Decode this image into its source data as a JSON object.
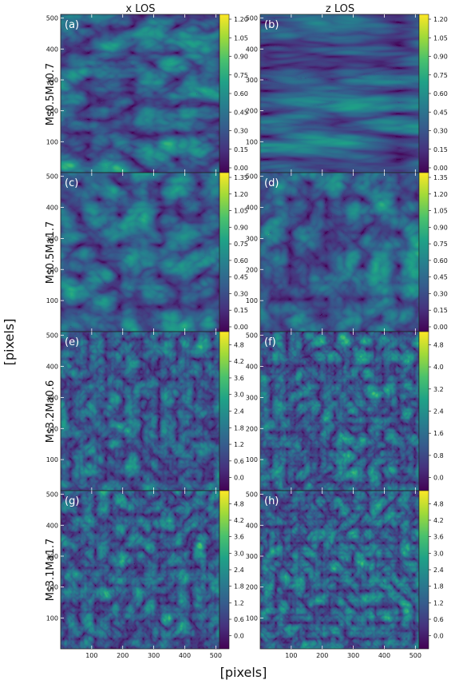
{
  "figure": {
    "column_titles": [
      "x LOS",
      "z LOS"
    ],
    "row_labels": [
      "Ms0.5Ma0.7",
      "Ms0.5Ma1.7",
      "Ms3.2Ma0.6",
      "Ms3.1Ma1.7"
    ],
    "xlabel": "[pixels]",
    "ylabel": "[pixels]",
    "colormap": "viridis",
    "colormap_stops": [
      "#440154",
      "#46327e",
      "#365c8d",
      "#277f8e",
      "#1fa187",
      "#4ac16d",
      "#a0da39",
      "#fde725"
    ]
  },
  "chart_data": [
    {
      "type": "heatmap",
      "panel_label": "(a)",
      "row": 0,
      "col": 0,
      "xlim": [
        0,
        512
      ],
      "ylim": [
        0,
        512
      ],
      "x_ticks": [
        100,
        200,
        300,
        400,
        500
      ],
      "y_ticks": [
        100,
        200,
        300,
        400,
        500
      ],
      "colorbar_ticks": [
        "0.00",
        "0.15",
        "0.30",
        "0.45",
        "0.60",
        "0.75",
        "0.90",
        "1.05",
        "1.20"
      ],
      "colorbar_range": [
        0,
        1.2
      ]
    },
    {
      "type": "heatmap",
      "panel_label": "(b)",
      "row": 0,
      "col": 1,
      "xlim": [
        0,
        512
      ],
      "ylim": [
        0,
        512
      ],
      "x_ticks": [
        100,
        200,
        300,
        400,
        500
      ],
      "y_ticks": [
        100,
        200,
        300,
        400,
        500
      ],
      "colorbar_ticks": [
        "0.00",
        "0.15",
        "0.30",
        "0.45",
        "0.60",
        "0.75",
        "0.90",
        "1.05",
        "1.20"
      ],
      "colorbar_range": [
        0,
        1.2
      ]
    },
    {
      "type": "heatmap",
      "panel_label": "(c)",
      "row": 1,
      "col": 0,
      "xlim": [
        0,
        512
      ],
      "ylim": [
        0,
        512
      ],
      "x_ticks": [
        100,
        200,
        300,
        400,
        500
      ],
      "y_ticks": [
        100,
        200,
        300,
        400,
        500
      ],
      "colorbar_ticks": [
        "0.00",
        "0.15",
        "0.30",
        "0.45",
        "0.60",
        "0.75",
        "0.90",
        "1.05",
        "1.20",
        "1.35"
      ],
      "colorbar_range": [
        0,
        1.35
      ]
    },
    {
      "type": "heatmap",
      "panel_label": "(d)",
      "row": 1,
      "col": 1,
      "xlim": [
        0,
        512
      ],
      "ylim": [
        0,
        512
      ],
      "x_ticks": [
        100,
        200,
        300,
        400,
        500
      ],
      "y_ticks": [
        100,
        200,
        300,
        400,
        500
      ],
      "colorbar_ticks": [
        "0.00",
        "0.15",
        "0.30",
        "0.45",
        "0.60",
        "0.75",
        "0.90",
        "1.05",
        "1.20",
        "1.35"
      ],
      "colorbar_range": [
        0,
        1.35
      ]
    },
    {
      "type": "heatmap",
      "panel_label": "(e)",
      "row": 2,
      "col": 0,
      "xlim": [
        0,
        512
      ],
      "ylim": [
        0,
        512
      ],
      "x_ticks": [
        100,
        200,
        300,
        400,
        500
      ],
      "y_ticks": [
        100,
        200,
        300,
        400,
        500
      ],
      "colorbar_ticks": [
        "0.0",
        "0.6",
        "1.2",
        "1.8",
        "2.4",
        "3.0",
        "3.6",
        "4.2",
        "4.8"
      ],
      "colorbar_range": [
        -0.3,
        5.1
      ]
    },
    {
      "type": "heatmap",
      "panel_label": "(f)",
      "row": 2,
      "col": 1,
      "xlim": [
        0,
        512
      ],
      "ylim": [
        0,
        512
      ],
      "x_ticks": [
        100,
        200,
        300,
        400,
        500
      ],
      "y_ticks": [
        100,
        200,
        300,
        400,
        500
      ],
      "colorbar_ticks": [
        "0.0",
        "0.8",
        "1.6",
        "2.4",
        "3.2",
        "4.0",
        "4.8"
      ],
      "colorbar_range": [
        -0.3,
        5.1
      ]
    },
    {
      "type": "heatmap",
      "panel_label": "(g)",
      "row": 3,
      "col": 0,
      "xlim": [
        0,
        512
      ],
      "ylim": [
        0,
        512
      ],
      "x_ticks": [
        100,
        200,
        300,
        400,
        500
      ],
      "y_ticks": [
        100,
        200,
        300,
        400,
        500
      ],
      "colorbar_ticks": [
        "0.0",
        "0.6",
        "1.2",
        "1.8",
        "2.4",
        "3.0",
        "3.6",
        "4.2",
        "4.8"
      ],
      "colorbar_range": [
        -0.3,
        5.1
      ]
    },
    {
      "type": "heatmap",
      "panel_label": "(h)",
      "row": 3,
      "col": 1,
      "xlim": [
        0,
        512
      ],
      "ylim": [
        0,
        512
      ],
      "x_ticks": [
        100,
        200,
        300,
        400,
        500
      ],
      "y_ticks": [
        100,
        200,
        300,
        400,
        500
      ],
      "colorbar_ticks": [
        "0.0",
        "0.6",
        "1.2",
        "1.8",
        "2.4",
        "3.0",
        "3.6",
        "4.2",
        "4.8"
      ],
      "colorbar_range": [
        -0.3,
        5.1
      ]
    }
  ]
}
